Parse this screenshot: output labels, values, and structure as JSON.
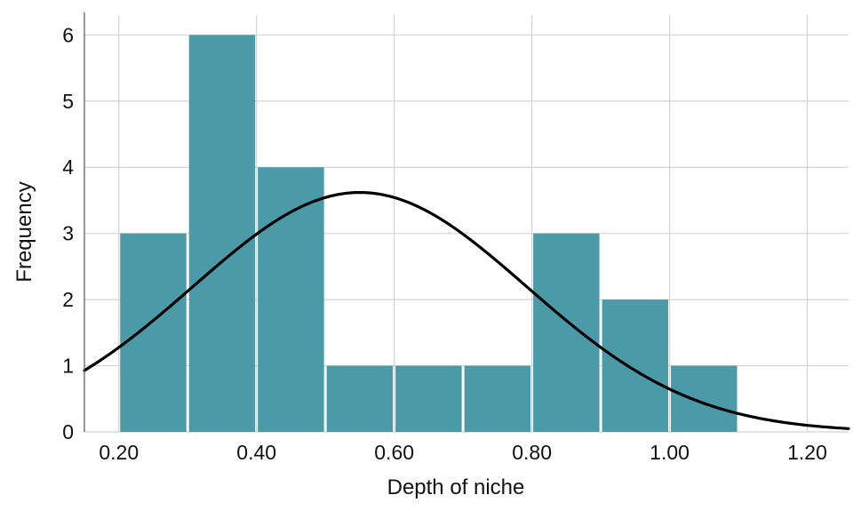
{
  "chart_data": {
    "type": "bar",
    "subtype": "histogram",
    "xlabel": "Depth of niche",
    "ylabel": "Frequency",
    "xlim": [
      0.15,
      1.26
    ],
    "ylim": [
      0,
      6.3
    ],
    "x_ticks": [
      0.2,
      0.4,
      0.6,
      0.8,
      1.0,
      1.2
    ],
    "x_tick_labels": [
      "0.20",
      "0.40",
      "0.60",
      "0.80",
      "1.00",
      "1.20"
    ],
    "y_ticks": [
      0,
      1,
      2,
      3,
      4,
      5,
      6
    ],
    "y_tick_labels": [
      "0",
      "1",
      "2",
      "3",
      "4",
      "5",
      "6"
    ],
    "bins": [
      {
        "start": 0.2,
        "end": 0.3,
        "count": 3
      },
      {
        "start": 0.3,
        "end": 0.4,
        "count": 6
      },
      {
        "start": 0.4,
        "end": 0.5,
        "count": 4
      },
      {
        "start": 0.5,
        "end": 0.6,
        "count": 1
      },
      {
        "start": 0.6,
        "end": 0.7,
        "count": 1
      },
      {
        "start": 0.7,
        "end": 0.8,
        "count": 1
      },
      {
        "start": 0.8,
        "end": 0.9,
        "count": 3
      },
      {
        "start": 0.9,
        "end": 1.0,
        "count": 2
      },
      {
        "start": 1.0,
        "end": 1.1,
        "count": 1
      }
    ],
    "normal_curve": {
      "mean": 0.55,
      "sd": 0.2425,
      "n": 22,
      "bin_width": 0.1
    },
    "grid": true,
    "bar_color": "#4a9aa8",
    "curve_color": "#000000",
    "grid_color": "#d4d4d4"
  }
}
